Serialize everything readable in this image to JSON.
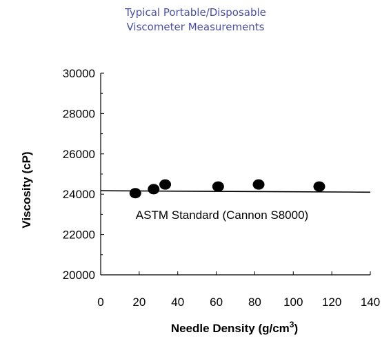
{
  "chart_data": {
    "type": "scatter",
    "title_lines": [
      "Typical Portable/Disposable",
      "Viscometer Measurements"
    ],
    "xlabel": "Needle Density (g/cm",
    "xlabel_sup": "3",
    "xlabel_end": ")",
    "ylabel": "Viscosity (cP)",
    "xlim": [
      0,
      140
    ],
    "ylim": [
      20000,
      30000
    ],
    "x_ticks": [
      0,
      20,
      40,
      60,
      80,
      100,
      120,
      140
    ],
    "y_ticks": [
      20000,
      22000,
      24000,
      26000,
      28000,
      30000
    ],
    "points": [
      {
        "x": 18,
        "y": 24050
      },
      {
        "x": 27.5,
        "y": 24250
      },
      {
        "x": 33.5,
        "y": 24480
      },
      {
        "x": 61,
        "y": 24380
      },
      {
        "x": 82,
        "y": 24480
      },
      {
        "x": 113.5,
        "y": 24380
      }
    ],
    "reference_line": {
      "label": "ASTM Standard (Cannon S8000)",
      "y_start": 24170,
      "y_end": 24100
    },
    "grid": false,
    "colors": {
      "title": "#4a4fa3",
      "marker": "#000000",
      "line": "#000000"
    }
  }
}
